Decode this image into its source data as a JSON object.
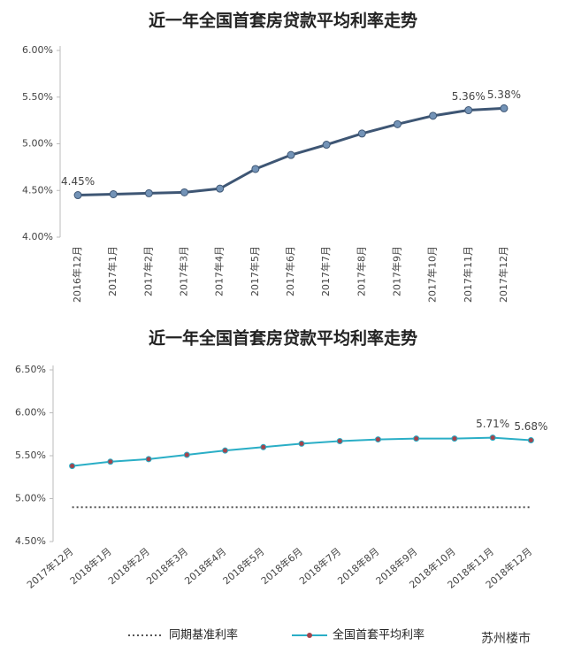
{
  "chart_data": [
    {
      "type": "line",
      "title": "近一年全国首套房贷款平均利率走势",
      "categories": [
        "2016年12月",
        "2017年1月",
        "2017年2月",
        "2017年3月",
        "2017年4月",
        "2017年5月",
        "2017年6月",
        "2017年7月",
        "2017年8月",
        "2017年9月",
        "2017年10月",
        "2017年11月",
        "2017年12月"
      ],
      "values": [
        4.45,
        4.46,
        4.47,
        4.48,
        4.52,
        4.73,
        4.88,
        4.99,
        5.11,
        5.21,
        5.3,
        5.36,
        5.38
      ],
      "value_labels": [
        "4.45%",
        null,
        null,
        null,
        null,
        null,
        null,
        null,
        null,
        null,
        null,
        "5.36%",
        "5.38%"
      ],
      "color": "#3e5674",
      "marker_color": "#7393b7",
      "ylim": [
        4.0,
        6.0
      ],
      "yticks": [
        {
          "value": 4.0,
          "label": "4.00%"
        },
        {
          "value": 4.5,
          "label": "4.50%"
        },
        {
          "value": 5.0,
          "label": "5.00%"
        },
        {
          "value": 5.5,
          "label": "5.50%"
        },
        {
          "value": 6.0,
          "label": "6.00%"
        }
      ],
      "grid": false
    },
    {
      "type": "line",
      "title": "近一年全国首套房贷款平均利率走势",
      "categories": [
        "2017年12月",
        "2018年1月",
        "2018年2月",
        "2018年3月",
        "2018年4月",
        "2018年5月",
        "2018年6月",
        "2018年7月",
        "2018年8月",
        "2018年9月",
        "2018年10月",
        "2018年11月",
        "2018年12月"
      ],
      "series": [
        {
          "name": "同期基准利率",
          "color": "#555555",
          "line_style": "dotted",
          "values": [
            4.9,
            4.9,
            4.9,
            4.9,
            4.9,
            4.9,
            4.9,
            4.9,
            4.9,
            4.9,
            4.9,
            4.9,
            4.9
          ]
        },
        {
          "name": "全国首套平均利率",
          "color": "#2aaec6",
          "marker_color": "#a4434c",
          "values": [
            5.38,
            5.43,
            5.46,
            5.51,
            5.56,
            5.6,
            5.64,
            5.67,
            5.69,
            5.7,
            5.7,
            5.71,
            5.68
          ],
          "value_labels": [
            null,
            null,
            null,
            null,
            null,
            null,
            null,
            null,
            null,
            null,
            null,
            "5.71%",
            "5.68%"
          ]
        }
      ],
      "ylim": [
        4.5,
        6.5
      ],
      "yticks": [
        {
          "value": 4.5,
          "label": "4.50%"
        },
        {
          "value": 5.0,
          "label": "5.00%"
        },
        {
          "value": 5.5,
          "label": "5.50%"
        },
        {
          "value": 6.0,
          "label": "6.00%"
        },
        {
          "value": 6.5,
          "label": "6.50%"
        }
      ],
      "grid": false,
      "legend": "bottom"
    }
  ],
  "footer": "苏州楼市"
}
